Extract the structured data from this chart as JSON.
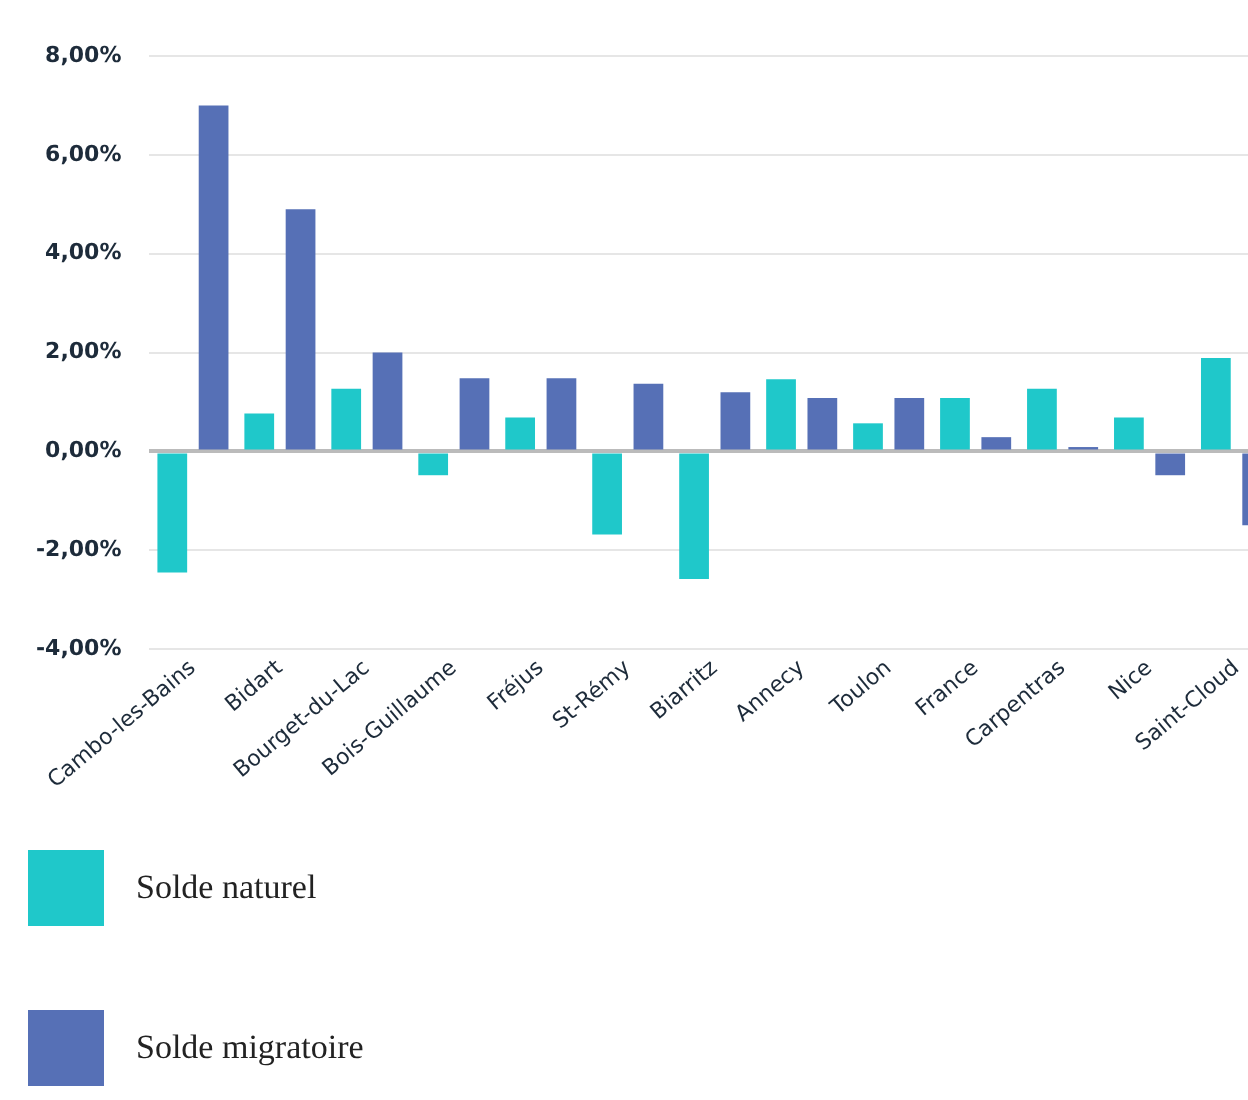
{
  "chart_data": {
    "type": "bar",
    "categories": [
      "Cambo-les-Bains",
      "Bidart",
      "Bourget-du-Lac",
      "Bois-Guillaume",
      "Fréjus",
      "St-Rémy",
      "Biarritz",
      "Annecy",
      "Toulon",
      "France",
      "Carpentras",
      "Nice",
      "Saint-Cloud"
    ],
    "series": [
      {
        "name": "Solde naturel",
        "color": "#1fc8ca",
        "values": [
          -2.45,
          0.77,
          1.27,
          -0.48,
          0.69,
          -1.68,
          -2.58,
          1.46,
          0.57,
          1.08,
          1.27,
          0.69,
          1.89
        ]
      },
      {
        "name": "Solde migratoire",
        "color": "#5670b6",
        "values": [
          7.0,
          4.9,
          2.0,
          1.48,
          1.48,
          1.37,
          1.2,
          1.08,
          1.08,
          0.29,
          0.09,
          -0.48,
          -1.49
        ]
      }
    ],
    "ylim": [
      -4,
      8
    ],
    "yticks": [
      {
        "value": -4,
        "label": "-4,00%"
      },
      {
        "value": -2,
        "label": "-2,00%"
      },
      {
        "value": 0,
        "label": "0,00%"
      },
      {
        "value": 2,
        "label": "2,00%"
      },
      {
        "value": 4,
        "label": "4,00%"
      },
      {
        "value": 6,
        "label": "6,00%"
      },
      {
        "value": 8,
        "label": "8,00%"
      }
    ],
    "grid": "y",
    "legend": "bottom"
  }
}
